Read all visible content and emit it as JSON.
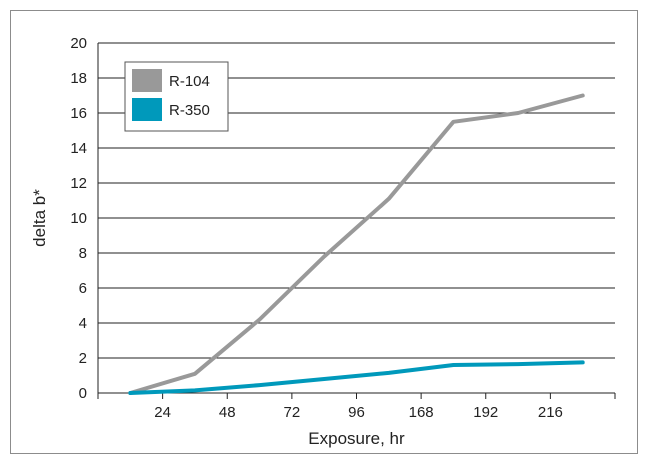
{
  "chart_data": {
    "type": "line",
    "title": "",
    "xlabel": "Exposure, hr",
    "ylabel": "delta b*",
    "categories": [
      "24",
      "48",
      "72",
      "96",
      "168",
      "192",
      "216"
    ],
    "ylim": [
      0,
      20
    ],
    "yticks": [
      0,
      2,
      4,
      6,
      8,
      10,
      12,
      14,
      16,
      18,
      20
    ],
    "grid": "horizontal",
    "legend_position": "top-left",
    "series": [
      {
        "name": "R-104",
        "color": "#999999",
        "points": [
          {
            "x": 12,
            "y": 0
          },
          {
            "x": 36,
            "y": 1.1
          },
          {
            "x": 60,
            "y": 4.2
          },
          {
            "x": 84,
            "y": 7.8
          },
          {
            "x": 108,
            "y": 11.1
          },
          {
            "x": 132,
            "y": 15.5
          },
          {
            "x": 156,
            "y": 16.0
          },
          {
            "x": 180,
            "y": 17.0
          }
        ]
      },
      {
        "name": "R-350",
        "color": "#0099bb",
        "points": [
          {
            "x": 12,
            "y": 0
          },
          {
            "x": 36,
            "y": 0.15
          },
          {
            "x": 60,
            "y": 0.45
          },
          {
            "x": 84,
            "y": 0.8
          },
          {
            "x": 108,
            "y": 1.15
          },
          {
            "x": 132,
            "y": 1.6
          },
          {
            "x": 156,
            "y": 1.65
          },
          {
            "x": 180,
            "y": 1.75
          }
        ]
      }
    ]
  }
}
